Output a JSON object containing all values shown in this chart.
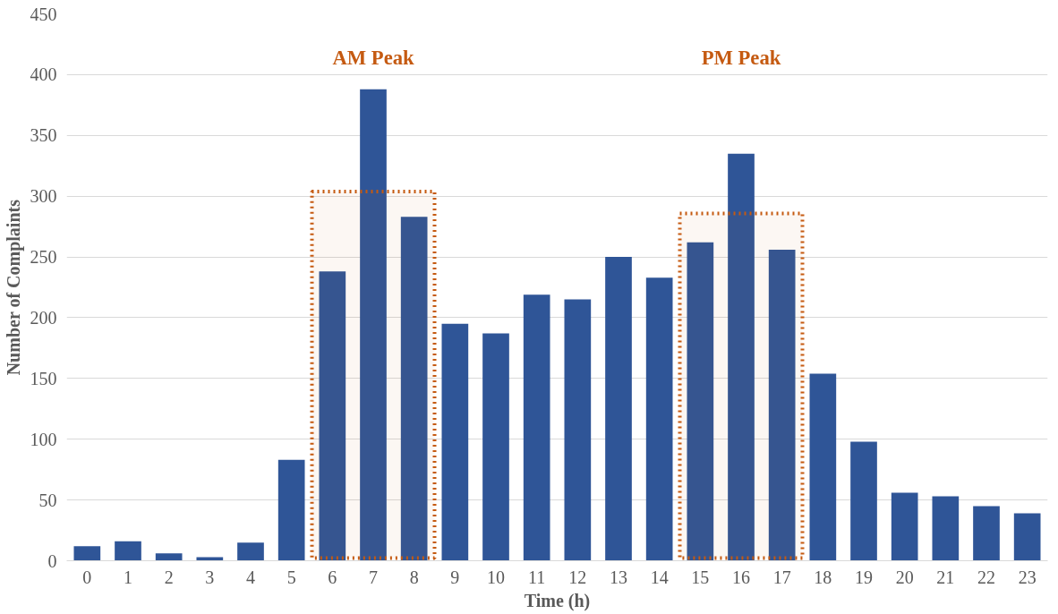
{
  "chart_data": {
    "type": "bar",
    "xlabel": "Time (h)",
    "ylabel": "Number of Complaints",
    "x": [
      0,
      1,
      2,
      3,
      4,
      5,
      6,
      7,
      8,
      9,
      10,
      11,
      12,
      13,
      14,
      15,
      16,
      17,
      18,
      19,
      20,
      21,
      22,
      23
    ],
    "values": [
      12,
      16,
      6,
      3,
      15,
      83,
      238,
      388,
      283,
      195,
      187,
      219,
      215,
      250,
      233,
      262,
      335,
      256,
      154,
      98,
      56,
      53,
      45,
      39
    ],
    "color": "#2f5597",
    "xlim": [
      -0.5,
      23.5
    ],
    "xticks": [
      0,
      1,
      2,
      3,
      4,
      5,
      6,
      7,
      8,
      9,
      10,
      11,
      12,
      13,
      14,
      15,
      16,
      17,
      18,
      19,
      20,
      21,
      22,
      23
    ],
    "ylim": [
      0,
      450
    ],
    "yticks": [
      0,
      50,
      100,
      150,
      200,
      250,
      300,
      350,
      400,
      450
    ],
    "grid": "y",
    "bands": [
      {
        "axis": "x",
        "from": 5.5,
        "to": 8.5,
        "label": "AM Peak",
        "color": "#c55a11"
      },
      {
        "axis": "x",
        "from": 14.5,
        "to": 17.5,
        "label": "PM Peak",
        "color": "#c55a11"
      }
    ]
  }
}
